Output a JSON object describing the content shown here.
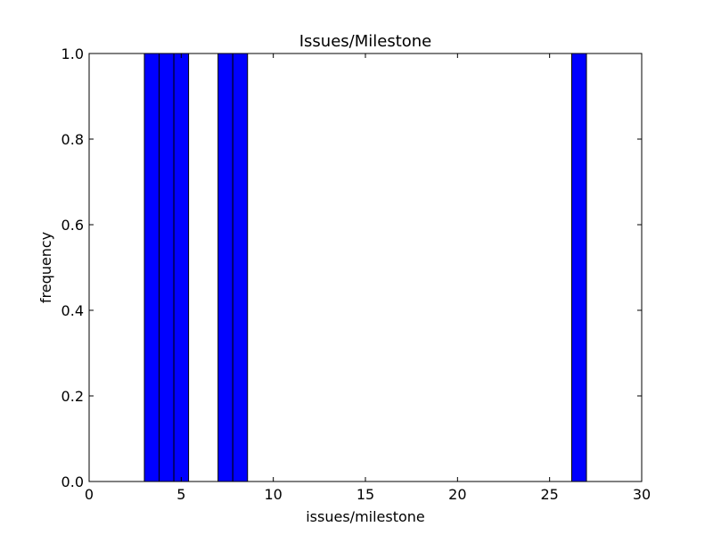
{
  "chart_data": {
    "type": "bar",
    "title": "Issues/Milestone",
    "xlabel": "issues/milestone",
    "ylabel": "frequency",
    "xlim": [
      0,
      30
    ],
    "ylim": [
      0,
      1.0
    ],
    "grid": false,
    "bar_color": "#0000ff",
    "edge_color": "#000000",
    "x_ticks": [
      0,
      5,
      10,
      15,
      20,
      25,
      30
    ],
    "x_tick_labels": [
      "0",
      "5",
      "10",
      "15",
      "20",
      "25",
      "30"
    ],
    "y_ticks": [
      0.0,
      0.2,
      0.4,
      0.6,
      0.8,
      1.0
    ],
    "y_tick_labels": [
      "0.0",
      "0.2",
      "0.4",
      "0.6",
      "0.8",
      "1.0"
    ],
    "bars": [
      {
        "x0": 3.0,
        "x1": 3.8,
        "value": 1
      },
      {
        "x0": 3.8,
        "x1": 4.6,
        "value": 1
      },
      {
        "x0": 4.6,
        "x1": 5.4,
        "value": 1
      },
      {
        "x0": 7.0,
        "x1": 7.8,
        "value": 1
      },
      {
        "x0": 7.8,
        "x1": 8.6,
        "value": 1
      },
      {
        "x0": 26.2,
        "x1": 27.0,
        "value": 1
      }
    ]
  }
}
